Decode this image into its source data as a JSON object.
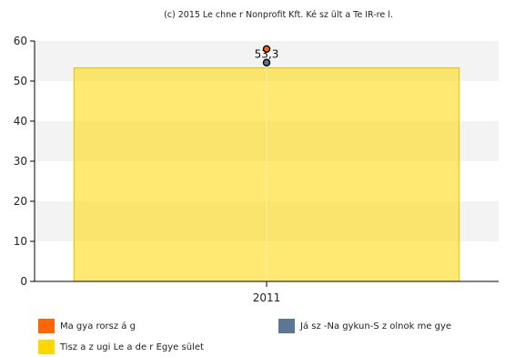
{
  "credit": "(c) 2015 Le chne r Nonprofit Kft. Ké sz ült a Te IR-re l.",
  "chart_data": {
    "type": "bar",
    "categories": [
      "2011"
    ],
    "ylim": [
      0,
      60
    ],
    "yticks": [
      0,
      10,
      20,
      30,
      40,
      50,
      60
    ],
    "grid": true,
    "legend_position": "bottom",
    "data_label": "53,3",
    "series": [
      {
        "name": "Tisz a z ugi Le a de r Egye sület",
        "type": "bar",
        "values": [
          53.3
        ],
        "color": "#FFD700"
      },
      {
        "name": "Ma gya rorsz á g",
        "type": "scatter",
        "values": [
          58.0
        ],
        "color": "#FF6600"
      },
      {
        "name": "Já sz -Na gykun-S z olnok me gye",
        "type": "scatter",
        "values": [
          54.6
        ],
        "color": "#5A7896"
      }
    ]
  },
  "legend": [
    {
      "label": "Ma gya rorsz á g",
      "color": "#FF6600"
    },
    {
      "label": "Já sz -Na gykun-S z olnok me gye",
      "color": "#5A7896"
    },
    {
      "label": "Tisz a z ugi Le a de r Egye sület",
      "color": "#FFD700"
    }
  ]
}
